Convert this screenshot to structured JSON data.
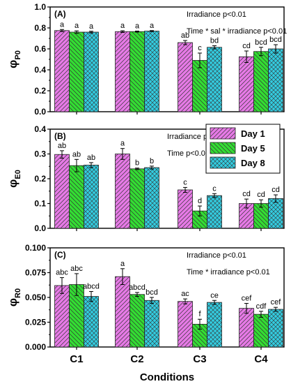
{
  "figure": {
    "xlabel": "Conditions",
    "categories": [
      "C1",
      "C2",
      "C3",
      "C4"
    ],
    "colors": {
      "day1": "#e67ae6",
      "day5": "#33dd33",
      "day8": "#33cce0"
    },
    "legend": [
      "Day 1",
      "Day 5",
      "Day 8"
    ]
  },
  "chart_data": [
    {
      "type": "bar",
      "panel": "(A)",
      "ylabel_main": "φ",
      "ylabel_sub": "P0",
      "categories": [
        "C1",
        "C2",
        "C3",
        "C4"
      ],
      "ylim": [
        0.0,
        1.0
      ],
      "yticks": [
        "0.0",
        "0.2",
        "0.4",
        "0.6",
        "0.8",
        "1.0"
      ],
      "yticks_values": [
        0.0,
        0.2,
        0.4,
        0.6,
        0.8,
        1.0
      ],
      "annotations": [
        "Irradiance p<0.01",
        "Time * sal * irradiance p<0.01"
      ],
      "series": [
        {
          "name": "Day 1",
          "values": [
            0.775,
            0.765,
            0.66,
            0.525
          ],
          "errors": [
            0.01,
            0.008,
            0.02,
            0.055
          ],
          "letters": [
            "a",
            "a",
            "ab",
            "cd"
          ]
        },
        {
          "name": "Day 5",
          "values": [
            0.76,
            0.765,
            0.49,
            0.575
          ],
          "errors": [
            0.012,
            0.005,
            0.07,
            0.04
          ],
          "letters": [
            "a",
            "a",
            "c",
            "bcd"
          ]
        },
        {
          "name": "Day 8",
          "values": [
            0.76,
            0.77,
            0.615,
            0.6
          ],
          "errors": [
            0.008,
            0.005,
            0.015,
            0.04
          ],
          "letters": [
            "a",
            "a",
            "bd",
            "bcd"
          ]
        }
      ]
    },
    {
      "type": "bar",
      "panel": "(B)",
      "ylabel_main": "φ",
      "ylabel_sub": "E0",
      "categories": [
        "C1",
        "C2",
        "C3",
        "C4"
      ],
      "ylim": [
        0.0,
        0.4
      ],
      "yticks": [
        "0.0",
        "0.1",
        "0.2",
        "0.3",
        "0.4"
      ],
      "yticks_values": [
        0.0,
        0.1,
        0.2,
        0.3,
        0.4
      ],
      "annotations": [
        "Irradiance p<0.01",
        "Time p<0.01"
      ],
      "legend_position": "right",
      "series": [
        {
          "name": "Day 1",
          "values": [
            0.298,
            0.3,
            0.155,
            0.1
          ],
          "errors": [
            0.015,
            0.022,
            0.01,
            0.018
          ],
          "letters": [
            "ab",
            "a",
            "c",
            "cd"
          ]
        },
        {
          "name": "Day 5",
          "values": [
            0.253,
            0.24,
            0.07,
            0.1
          ],
          "errors": [
            0.025,
            0.003,
            0.02,
            0.015
          ],
          "letters": [
            "ab",
            "b",
            "d",
            "cd"
          ]
        },
        {
          "name": "Day 8",
          "values": [
            0.255,
            0.245,
            0.132,
            0.12
          ],
          "errors": [
            0.01,
            0.006,
            0.008,
            0.015
          ],
          "letters": [
            "ab",
            "b",
            "c",
            "cd"
          ]
        }
      ]
    },
    {
      "type": "bar",
      "panel": "(C)",
      "ylabel_main": "φ",
      "ylabel_sub": "R0",
      "categories": [
        "C1",
        "C2",
        "C3",
        "C4"
      ],
      "ylim": [
        0.0,
        0.1
      ],
      "yticks": [
        "0.000",
        "0.025",
        "0.050",
        "0.075",
        "0.100"
      ],
      "yticks_values": [
        0.0,
        0.025,
        0.05,
        0.075,
        0.1
      ],
      "annotations": [
        "Irradiance p<0.01",
        "Time * irradiance p<0.01"
      ],
      "series": [
        {
          "name": "Day 1",
          "values": [
            0.062,
            0.071,
            0.046,
            0.039
          ],
          "errors": [
            0.008,
            0.008,
            0.0025,
            0.005
          ],
          "letters": [
            "abc",
            "a",
            "ac",
            "cef"
          ]
        },
        {
          "name": "Day 5",
          "values": [
            0.063,
            0.053,
            0.023,
            0.033
          ],
          "errors": [
            0.011,
            0.002,
            0.005,
            0.003
          ],
          "letters": [
            "abc",
            "abcd",
            "f",
            "cdf"
          ]
        },
        {
          "name": "Day 8",
          "values": [
            0.051,
            0.047,
            0.045,
            0.038
          ],
          "errors": [
            0.005,
            0.003,
            0.002,
            0.002
          ],
          "letters": [
            "abcd",
            "bcd",
            "ce",
            "cef"
          ]
        }
      ]
    }
  ]
}
